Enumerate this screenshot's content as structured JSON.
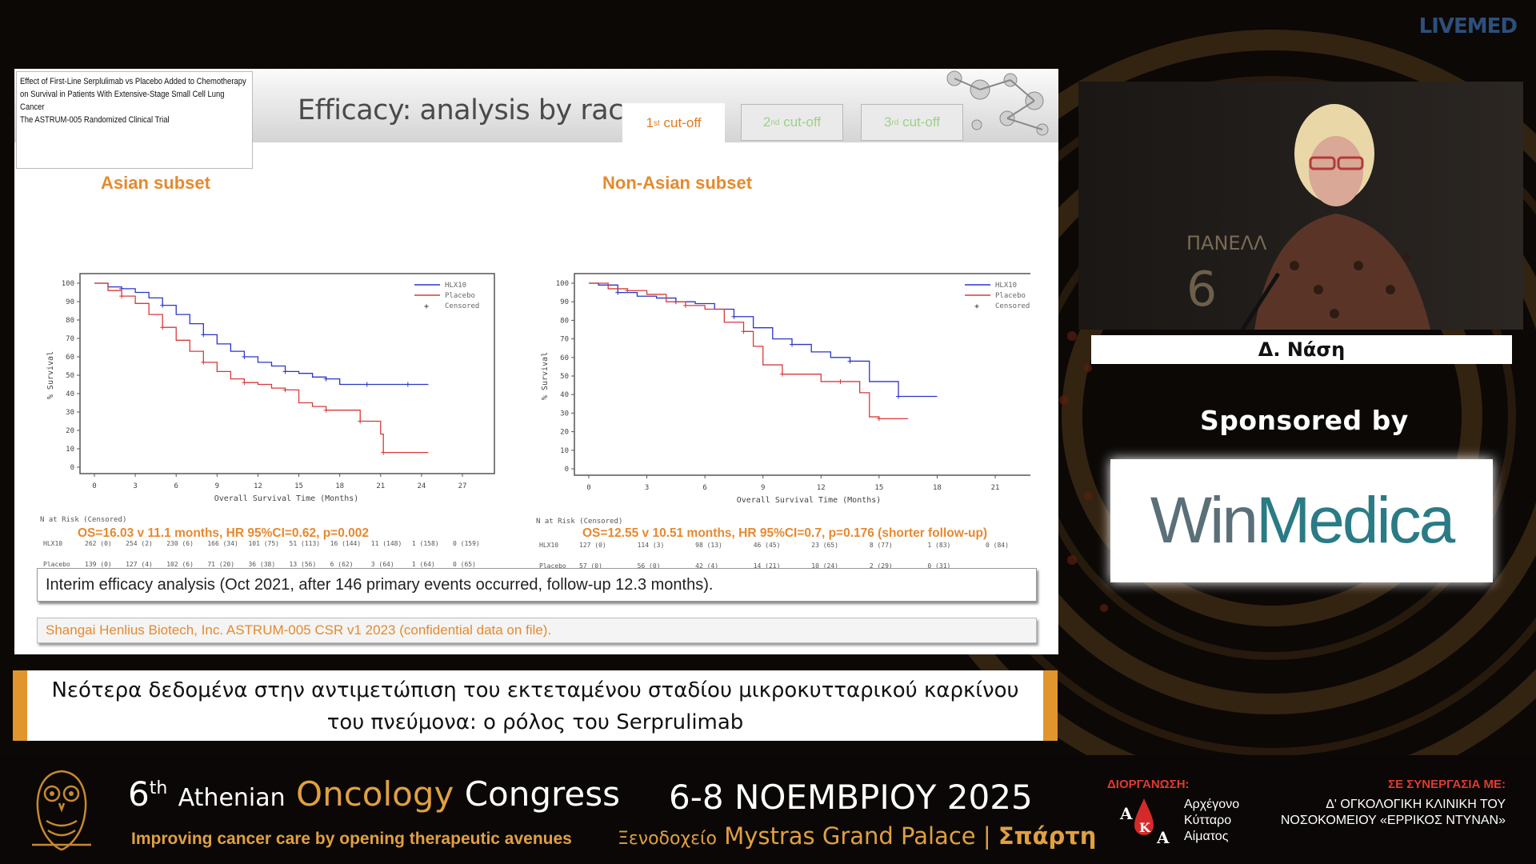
{
  "brand": {
    "livemed": "LIVEMED"
  },
  "slide": {
    "paper_title": [
      "Effect of First-Line Serplulimab vs Placebo Added to Chemotherapy",
      "on Survival in Patients With Extensive-Stage Small Cell Lung Cancer",
      "The ASTRUM-005 Randomized Clinical Trial"
    ],
    "title": "Efficacy: analysis by race",
    "tabs": [
      {
        "num": "1",
        "sup": "st",
        "label": " cut-off",
        "active": true
      },
      {
        "num": "2",
        "sup": "nd",
        "label": " cut-off",
        "active": false
      },
      {
        "num": "3",
        "sup": "rd",
        "label": " cut-off",
        "active": false
      }
    ],
    "asian_label": "Asian subset",
    "nonasian_label": "Non-Asian subset",
    "asian_os": "OS=16.03 v 11.1 months, HR 95%CI=0.62, p=0.002",
    "nonasian_os": "OS=12.55 v 10.51 months, HR 95%CI=0.7, p=0.176 (shorter follow-up)",
    "interim_note": "Interim efficacy analysis (Oct 2021, after 146 primary events occurred, follow-up 12.3 months).",
    "source_note": "Shangai Henlius Biotech, Inc. ASTRUM-005 CSR v1 2023 (confidential data on file)."
  },
  "chart_data": [
    {
      "type": "line",
      "subtitle": "Asian subset",
      "xlabel": "Overall Survival Time (Months)",
      "ylabel": "% Survival",
      "xlim": [
        0,
        27
      ],
      "ylim": [
        0,
        100
      ],
      "x_ticks": [
        0,
        3,
        6,
        9,
        12,
        15,
        18,
        21,
        24,
        27
      ],
      "y_ticks": [
        0,
        10,
        20,
        30,
        40,
        50,
        60,
        70,
        80,
        90,
        100
      ],
      "legend": [
        "HLX10",
        "Placebo",
        "Censored"
      ],
      "legend_position": "top-right",
      "colors": {
        "HLX10": "#2b35c8",
        "Placebo": "#d93a3a"
      },
      "series": [
        {
          "name": "HLX10",
          "x": [
            0,
            1,
            2,
            3,
            4,
            5,
            6,
            7,
            8,
            9,
            10,
            11,
            12,
            13,
            14,
            15,
            16,
            17,
            18,
            19,
            20,
            21,
            22,
            23,
            24.5
          ],
          "y": [
            100,
            98,
            97,
            95,
            92,
            88,
            83,
            78,
            72,
            67,
            63,
            60,
            57,
            55,
            52,
            51,
            49,
            48,
            45,
            45,
            45,
            45,
            45,
            45,
            45
          ]
        },
        {
          "name": "Placebo",
          "x": [
            0,
            1,
            2,
            3,
            4,
            5,
            6,
            7,
            8,
            9,
            10,
            11,
            12,
            13,
            14,
            15,
            16,
            17,
            18,
            19,
            19.5,
            20.5,
            21,
            21.2,
            24.5
          ],
          "y": [
            100,
            96,
            93,
            89,
            83,
            76,
            69,
            63,
            57,
            52,
            48,
            46,
            45,
            43,
            42,
            35,
            33,
            31,
            31,
            31,
            25,
            25,
            18,
            8,
            8
          ]
        }
      ],
      "risk_table": {
        "title": "N at Risk (Censored)",
        "rows": [
          {
            "label": "HLX10",
            "values": [
              "262 (0)",
              "254 (2)",
              "230 (6)",
              "166 (34)",
              "101 (75)",
              "51 (113)",
              "16 (144)",
              "11 (148)",
              "1 (158)",
              "0 (159)"
            ]
          },
          {
            "label": "Placebo",
            "values": [
              "139 (0)",
              "127 (4)",
              "102 (6)",
              "71 (20)",
              "36 (38)",
              "13 (56)",
              "6 (62)",
              "3 (64)",
              "1 (64)",
              "0 (65)"
            ]
          }
        ]
      }
    },
    {
      "type": "line",
      "subtitle": "Non-Asian subset",
      "xlabel": "Overall Survival Time (Months)",
      "ylabel": "% Survival",
      "xlim": [
        0,
        21
      ],
      "ylim": [
        0,
        100
      ],
      "x_ticks": [
        0,
        3,
        6,
        9,
        12,
        15,
        18,
        21
      ],
      "y_ticks": [
        0,
        10,
        20,
        30,
        40,
        50,
        60,
        70,
        80,
        90,
        100
      ],
      "legend": [
        "HLX10",
        "Placebo",
        "Censored"
      ],
      "legend_position": "top-right",
      "colors": {
        "HLX10": "#2b35c8",
        "Placebo": "#d93a3a"
      },
      "series": [
        {
          "name": "HLX10",
          "x": [
            0,
            0.5,
            1.5,
            2.5,
            3.5,
            4.5,
            5.5,
            6.5,
            7.5,
            8.5,
            9.5,
            10.5,
            11.5,
            12.5,
            13.5,
            14.5,
            15.5,
            16,
            17,
            18
          ],
          "y": [
            100,
            99,
            95,
            93,
            92,
            90,
            89,
            86,
            82,
            76,
            70,
            67,
            63,
            60,
            58,
            47,
            47,
            39,
            39,
            39
          ]
        },
        {
          "name": "Placebo",
          "x": [
            0,
            1,
            2,
            3,
            4,
            5,
            6,
            7,
            8,
            8.5,
            9,
            10,
            11,
            12,
            13,
            14,
            14.5,
            15,
            16,
            16.5
          ],
          "y": [
            100,
            97,
            96,
            94,
            90,
            88,
            86,
            79,
            74,
            66,
            56,
            51,
            51,
            47,
            47,
            41,
            28,
            27,
            27,
            27
          ]
        }
      ],
      "risk_table": {
        "title": "N at Risk (Censored)",
        "rows": [
          {
            "label": "HLX10",
            "values": [
              "127 (0)",
              "114 (3)",
              "98 (13)",
              "46 (45)",
              "23 (65)",
              "8 (77)",
              "1 (83)",
              "0 (84)"
            ]
          },
          {
            "label": "Placebo",
            "values": [
              "57 (0)",
              "56 (0)",
              "42 (4)",
              "14 (21)",
              "10 (24)",
              "2 (29)",
              "0 (31)"
            ]
          }
        ]
      }
    }
  ],
  "speaker": {
    "name": "Δ. Νάση"
  },
  "sponsor": {
    "label": "Sponsored by",
    "logo_part1": "Win",
    "logo_part2": "Medica"
  },
  "caption": {
    "line1": "Νεότερα δεδομένα στην αντιμετώπιση του εκτεταμένου σταδίου μικροκυτταρικού καρκίνου",
    "line2": "του πνεύμονα: ο ρόλος του Serprulimab"
  },
  "footer": {
    "num": "6",
    "sup": "th",
    "athenian": "Athenian",
    "oncology": "Oncology",
    "congress": "Congress",
    "tagline": "Improving cancer care by opening therapeutic avenues",
    "dates": "6-8 ΝΟΕΜΒΡΙΟΥ 2025",
    "venue_pre": "Ξενοδοχείο",
    "venue_name": "Mystras Grand Palace",
    "venue_sep": " | ",
    "venue_city": "Σπάρτη",
    "org_label": "ΔΙΟΡΓΑΝΩΣΗ:",
    "org_name": [
      "Αρχέγονο",
      "Κύτταρο",
      "Αίματος"
    ],
    "coop_label": "ΣΕ ΣΥΝΕΡΓΑΣΙΑ ΜΕ:",
    "coop_name": [
      "Δ' ΟΓΚΟΛΟΓΙΚΗ ΚΛΙΝΙΚΗ ΤΟΥ",
      "ΝΟΣΟΚΟΜΕΙΟΥ «ΕΡΡΙΚΟΣ ΝΤΥΝΑΝ»"
    ]
  }
}
